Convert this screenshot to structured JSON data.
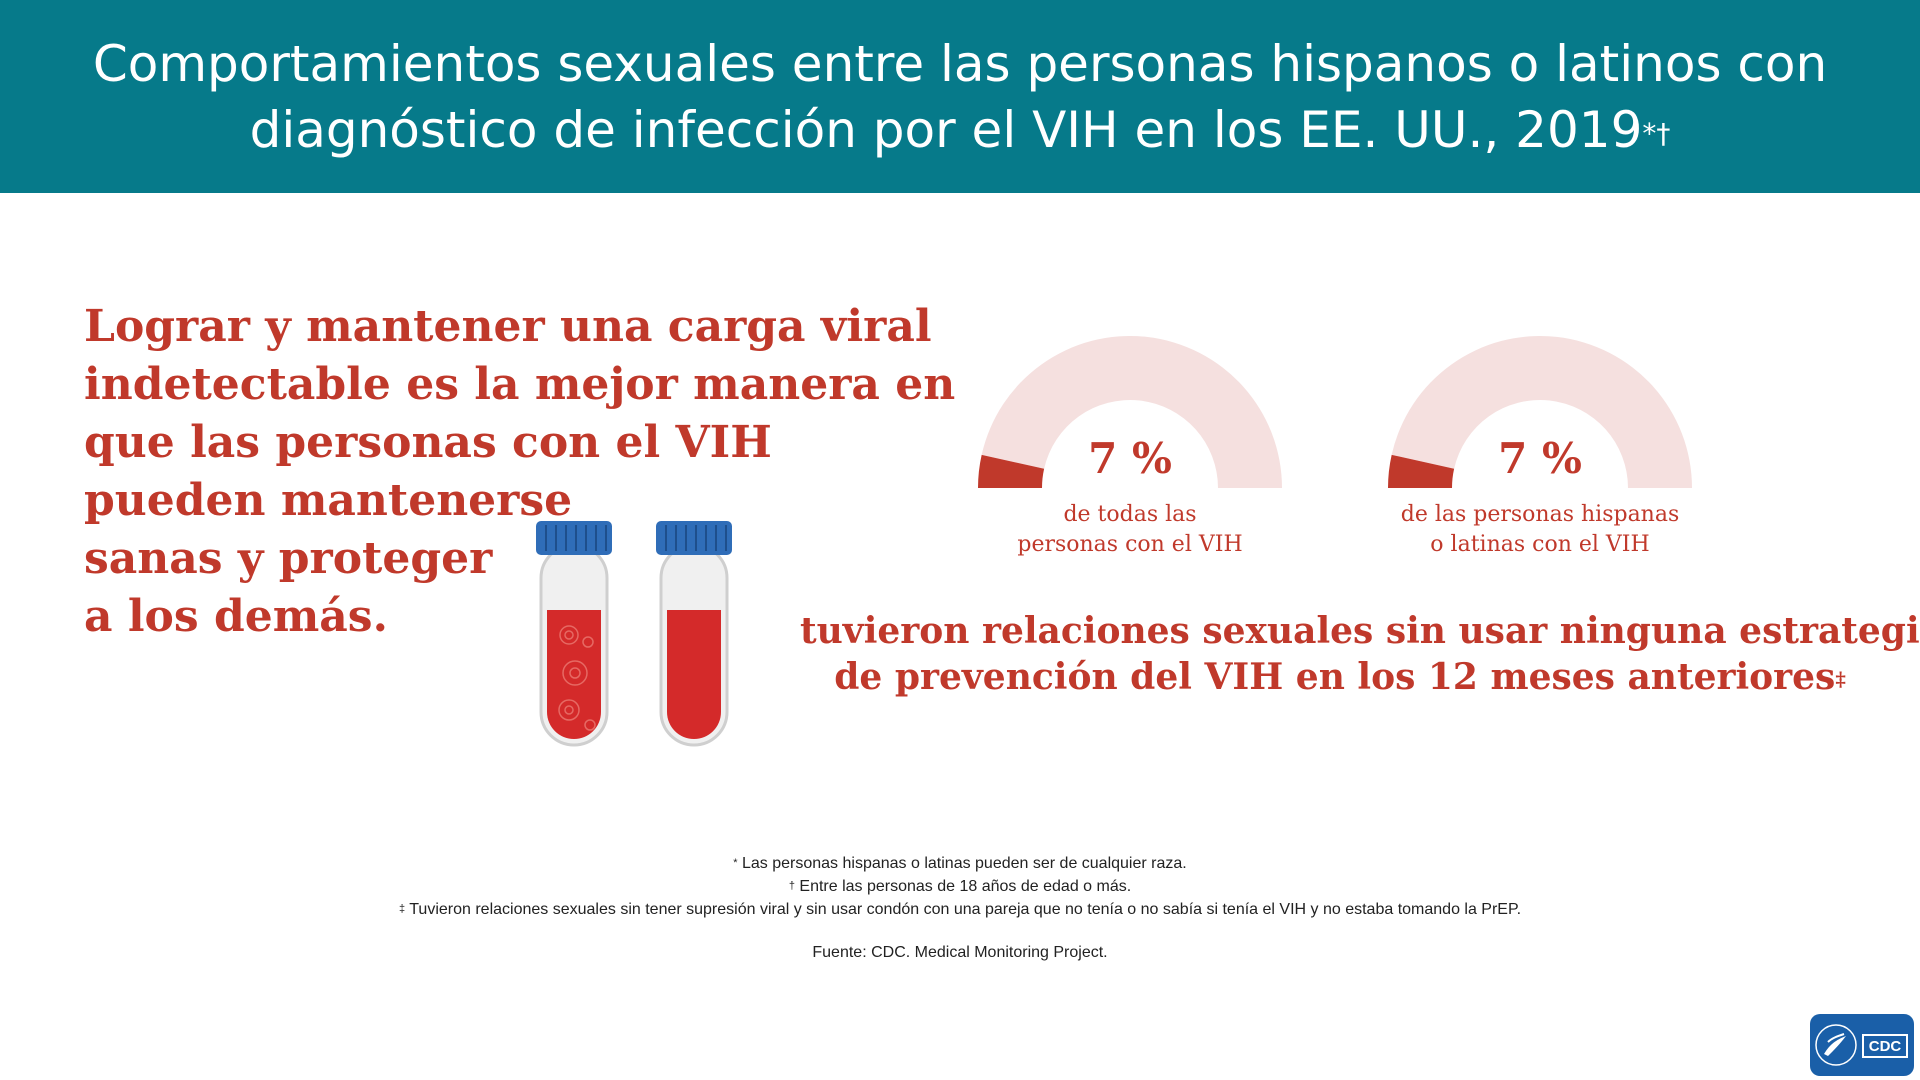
{
  "header": {
    "title": "Comportamientos sexuales entre las personas hispanos o latinos con diagnóstico de infección por el VIH en los EE. UU., 2019",
    "title_marks": "*†",
    "background_color": "#067a8a"
  },
  "headline": {
    "lines": [
      "Lograr y mantener una carga viral",
      "indetectable es la mejor manera en",
      "que las personas con el VIH",
      "pueden mantenerse",
      "sanas y proteger",
      "a los demás."
    ]
  },
  "illustration": {
    "icon": "blood-test-tubes-icon"
  },
  "chart_data": [
    {
      "type": "pie",
      "style": "half-donut gauge",
      "value_percent": 7,
      "value_label": "7 %",
      "label_lines": [
        "de todas las",
        "personas con el VIH"
      ],
      "colors": {
        "filled": "#c0392b",
        "remaining": "#f5e0df"
      }
    },
    {
      "type": "pie",
      "style": "half-donut gauge",
      "value_percent": 7,
      "value_label": "7 %",
      "label_lines": [
        "de las personas hispanas",
        "o latinas con el VIH"
      ],
      "colors": {
        "filled": "#c0392b",
        "remaining": "#f5e0df"
      }
    }
  ],
  "statement": {
    "line1": "tuvieron relaciones sexuales sin usar ninguna estrategia",
    "line2": "de prevención del VIH en los 12 meses anteriores",
    "mark": "‡"
  },
  "footnotes": {
    "items": [
      {
        "symbol": "*",
        "text": " Las personas hispanas o latinas pueden ser de cualquier raza."
      },
      {
        "symbol": "†",
        "text": " Entre las personas de 18 años de edad o más."
      },
      {
        "symbol": "‡",
        "text": " Tuvieron relaciones sexuales sin tener supresión viral y sin usar condón con una pareja que no tenía o no sabía si tenía el VIH y no estaba tomando la PrEP."
      }
    ],
    "source": "Fuente: CDC. Medical Monitoring Project."
  },
  "logo": {
    "text": "CDC",
    "color": "#1a5fa8"
  },
  "accent_color": "#c0392b"
}
